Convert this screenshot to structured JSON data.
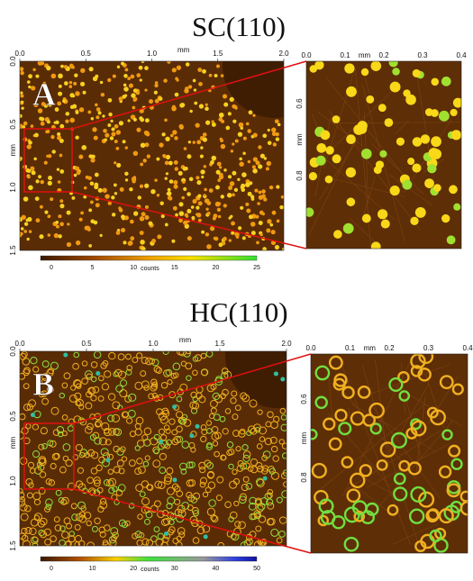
{
  "panels": [
    {
      "title": "SC(110)",
      "label": "A",
      "main_x_ticks": [
        "0.0",
        "0.5",
        "1.0",
        "1.5",
        "2.0"
      ],
      "main_x_unit": "mm",
      "main_y_ticks": [
        "0.0",
        "0.5",
        "1.0",
        "1.5"
      ],
      "main_y_unit": "mm",
      "inset_x_ticks": [
        "0.0",
        "0.1",
        "0.2",
        "0.3",
        "0.4"
      ],
      "inset_x_unit": "mm",
      "inset_y_ticks": [
        "0.6",
        "0.8"
      ],
      "inset_y_unit": "mm",
      "colorbar_ticks": [
        "0",
        "5",
        "10",
        "15",
        "20",
        "25"
      ],
      "colorbar_unit": "counts"
    },
    {
      "title": "HC(110)",
      "label": "B",
      "main_x_ticks": [
        "0.0",
        "0.5",
        "1.0",
        "1.5",
        "2.0"
      ],
      "main_x_unit": "mm",
      "main_y_ticks": [
        "0.0",
        "0.5",
        "1.0",
        "1.5"
      ],
      "main_y_unit": "mm",
      "inset_x_ticks": [
        "0.0",
        "0.1",
        "0.2",
        "0.3",
        "0.4"
      ],
      "inset_x_unit": "mm",
      "inset_y_ticks": [
        "0.6",
        "0.8"
      ],
      "inset_y_unit": "mm",
      "colorbar_ticks": [
        "0",
        "10",
        "20",
        "30",
        "40",
        "50"
      ],
      "colorbar_unit": "counts"
    }
  ]
}
